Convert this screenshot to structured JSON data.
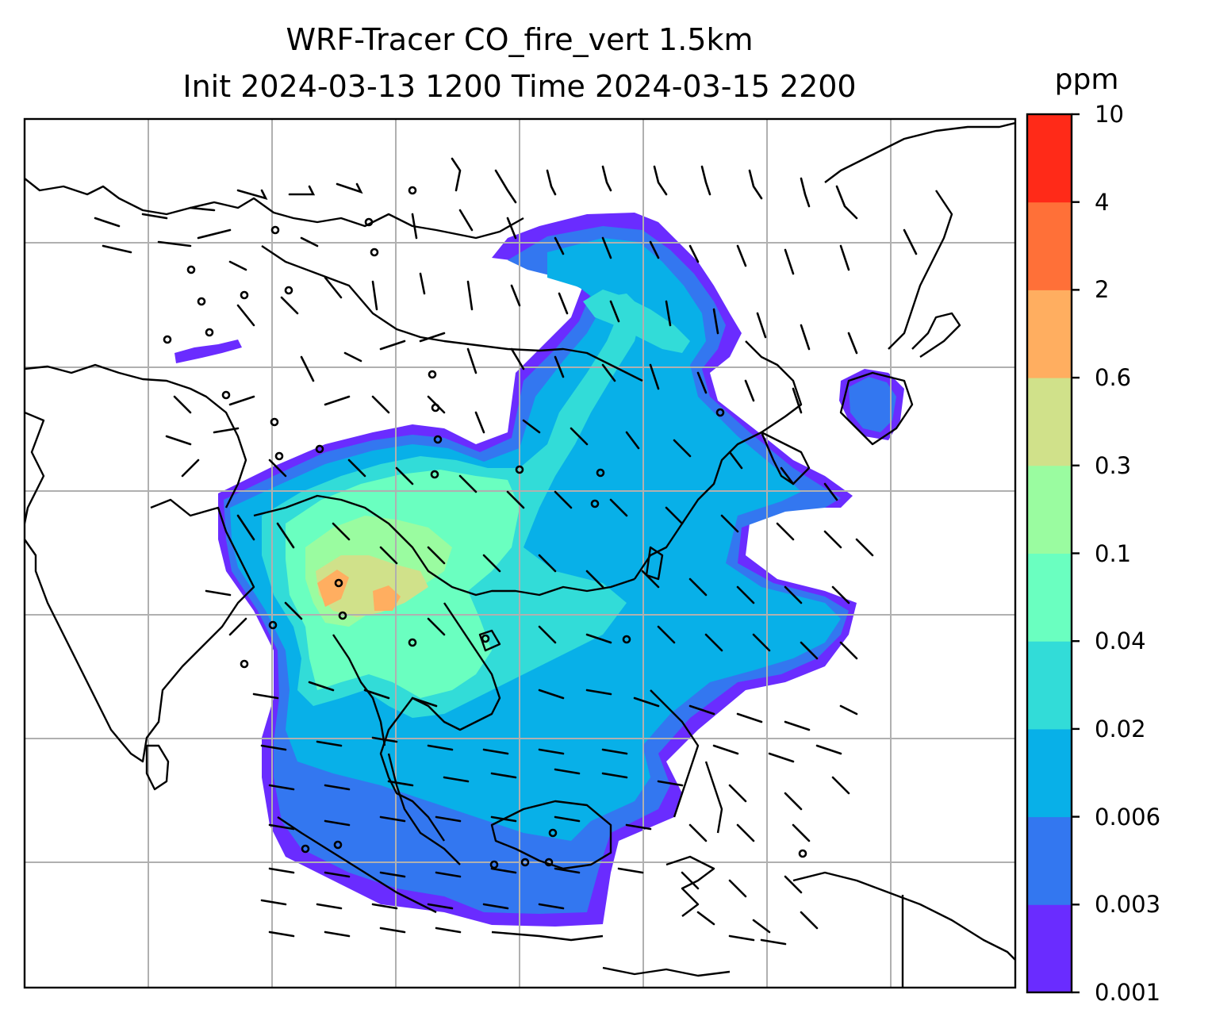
{
  "title": {
    "line1": "WRF-Tracer CO_fire_vert 1.5km",
    "line2": "Init 2024-03-13 1200 Time 2024-03-15 2200"
  },
  "colorbar": {
    "unit": "ppm",
    "tick_labels": [
      "0.001",
      "0.003",
      "0.006",
      "0.02",
      "0.04",
      "0.1",
      "0.3",
      "0.6",
      "2",
      "4",
      "10"
    ],
    "level_colors": [
      "#6a2cff",
      "#3377f0",
      "#08b0e8",
      "#32dcd8",
      "#6affc0",
      "#9afca0",
      "#d0e18a",
      "#ffae60",
      "#ff7038",
      "#ff2a18"
    ]
  },
  "map": {
    "gridlines": true,
    "coastline_color": "#000000",
    "gridline_color": "#b0b0b0",
    "overlays": [
      "fire CO tracer shading",
      "wind barbs",
      "calm-wind circles",
      "coastlines and borders"
    ]
  }
}
